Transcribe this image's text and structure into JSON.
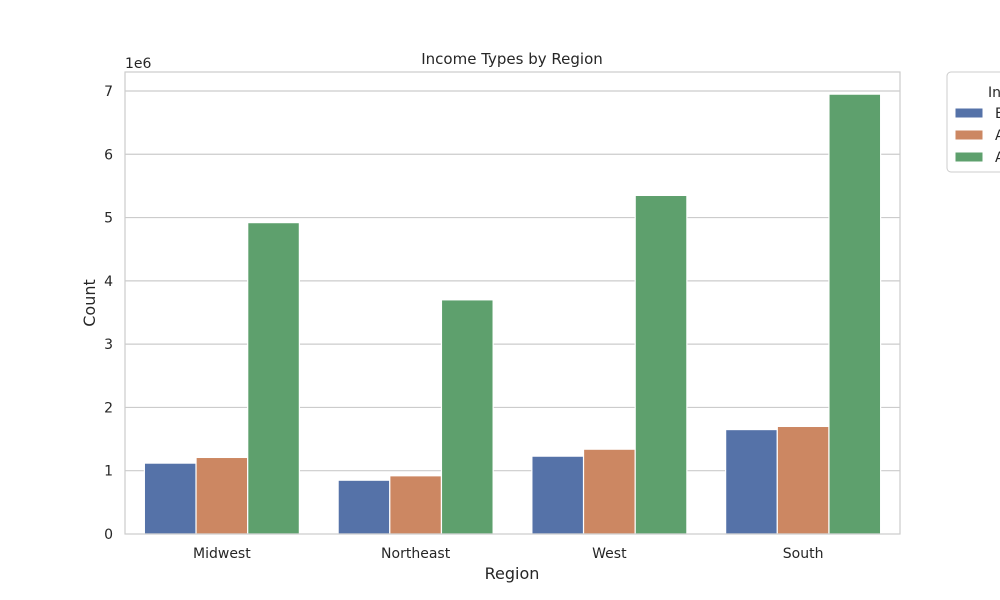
{
  "chart_data": {
    "type": "bar",
    "title": "Income Types by Region",
    "xlabel": "Region",
    "ylabel": "Count",
    "y_offset_text": "1e6",
    "categories": [
      "Midwest",
      "Northeast",
      "West",
      "South"
    ],
    "y_ticks": [
      "0",
      "1",
      "2",
      "3",
      "4",
      "5",
      "6",
      "7"
    ],
    "ylim": [
      0,
      7.3
    ],
    "y_scale": 1000000,
    "grid": true,
    "legend_placement": "outside-upper-right",
    "legend_title": "In",
    "series": [
      {
        "name": "E",
        "color": "#5572a8",
        "values": [
          1.12,
          0.85,
          1.23,
          1.65
        ]
      },
      {
        "name": "A",
        "color": "#cc8762",
        "values": [
          1.21,
          0.92,
          1.34,
          1.7
        ]
      },
      {
        "name": "A",
        "color": "#5ea06d",
        "values": [
          4.92,
          3.7,
          5.35,
          6.95
        ]
      }
    ]
  }
}
